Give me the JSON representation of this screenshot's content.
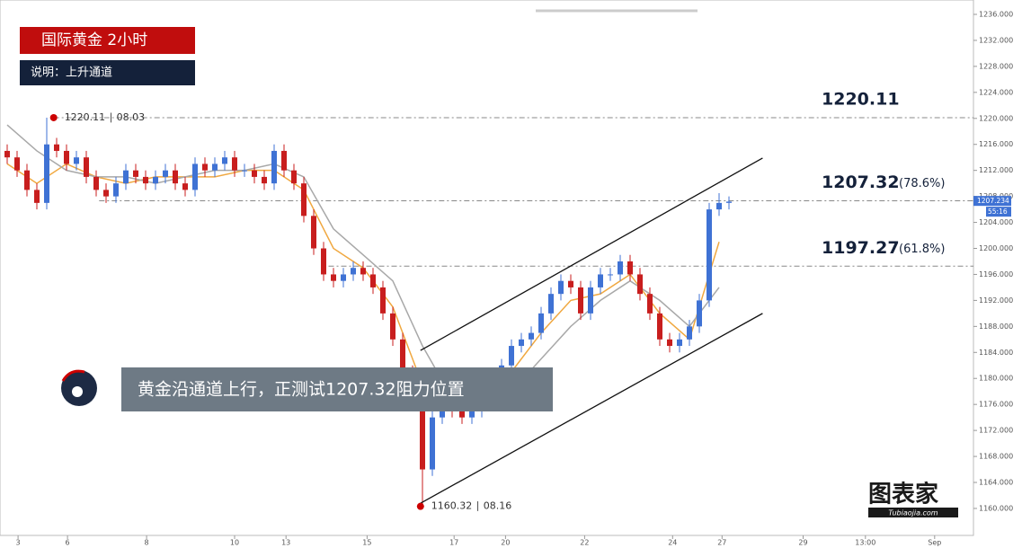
{
  "chart_data": {
    "type": "candlestick",
    "title": "国际黄金  2小时",
    "subtitle": "说明：上升通道",
    "caption": "黄金沿通道上行，正测试1207.32阻力位置",
    "logo": "图表家",
    "logo_sub": "Tubiaojia.com",
    "up_color": "#3f72d4",
    "down_color": "#c81e1e",
    "xlim": [
      -0.727,
      97.727
    ],
    "ylim": [
      1155.85,
      1238.21
    ],
    "xticks": [
      {
        "value": 1.1,
        "label": "3"
      },
      {
        "value": 6.1,
        "label": "6"
      },
      {
        "value": 14.1,
        "label": "8"
      },
      {
        "value": 23.0,
        "label": "10"
      },
      {
        "value": 28.2,
        "label": "13"
      },
      {
        "value": 36.4,
        "label": "15"
      },
      {
        "value": 45.2,
        "label": "17"
      },
      {
        "value": 50.4,
        "label": "20"
      },
      {
        "value": 58.4,
        "label": "22"
      },
      {
        "value": 67.3,
        "label": "24"
      },
      {
        "value": 72.3,
        "label": "27"
      },
      {
        "value": 80.5,
        "label": "29"
      },
      {
        "value": 86.8,
        "label": "13:00"
      },
      {
        "value": 93.8,
        "label": "Sep"
      }
    ],
    "yticks": [
      {
        "value": 1160,
        "label": "1160.000"
      },
      {
        "value": 1164,
        "label": "1164.000"
      },
      {
        "value": 1168,
        "label": "1168.000"
      },
      {
        "value": 1172,
        "label": "1172.000"
      },
      {
        "value": 1176,
        "label": "1176.000"
      },
      {
        "value": 1180,
        "label": "1180.000"
      },
      {
        "value": 1184,
        "label": "1184.000"
      },
      {
        "value": 1188,
        "label": "1188.000"
      },
      {
        "value": 1192,
        "label": "1192.000"
      },
      {
        "value": 1196,
        "label": "1196.000"
      },
      {
        "value": 1200,
        "label": "1200.000"
      },
      {
        "value": 1204,
        "label": "1204.000"
      },
      {
        "value": 1208,
        "label": "1208.000"
      },
      {
        "value": 1212,
        "label": "1212.000"
      },
      {
        "value": 1216,
        "label": "1216.000"
      },
      {
        "value": 1220,
        "label": "1220.000"
      },
      {
        "value": 1224,
        "label": "1224.000"
      },
      {
        "value": 1228,
        "label": "1228.000"
      },
      {
        "value": 1232,
        "label": "1232.000"
      },
      {
        "value": 1236,
        "label": "1236.000"
      }
    ],
    "x": [
      0,
      1,
      2,
      3,
      4,
      5,
      6,
      7,
      8,
      9,
      10,
      11,
      12,
      13,
      14,
      15,
      16,
      17,
      18,
      19,
      20,
      21,
      22,
      23,
      24,
      25,
      26,
      27,
      28,
      29,
      30,
      31,
      32,
      33,
      34,
      35,
      36,
      37,
      38,
      39,
      40,
      41,
      42,
      43,
      44,
      45,
      46,
      47,
      48,
      49,
      50,
      51,
      52,
      53,
      54,
      55,
      56,
      57,
      58,
      59,
      60,
      61,
      62,
      63,
      64,
      65,
      66,
      67,
      68,
      69,
      70,
      71,
      72,
      73
    ],
    "open": [
      1215,
      1214,
      1212,
      1209,
      1207,
      1216,
      1215,
      1213,
      1214,
      1211,
      1209,
      1208,
      1210,
      1212,
      1211,
      1210,
      1211,
      1212,
      1210,
      1209,
      1213,
      1212,
      1213,
      1214,
      1212,
      1212,
      1211,
      1210,
      1215,
      1212,
      1210,
      1205,
      1200,
      1196,
      1195,
      1196,
      1197,
      1196,
      1194,
      1190,
      1186,
      1181,
      1176,
      1166,
      1174,
      1177,
      1175,
      1174,
      1175,
      1177,
      1179,
      1182,
      1185,
      1186,
      1187,
      1190,
      1193,
      1195,
      1194,
      1190,
      1194,
      1196,
      1196,
      1198,
      1196,
      1193,
      1190,
      1186,
      1185,
      1186,
      1188,
      1192,
      1206,
      1207
    ],
    "high": [
      1216,
      1215,
      1213,
      1210,
      1220.11,
      1217,
      1216,
      1215,
      1215,
      1212,
      1210,
      1211,
      1213,
      1213,
      1212,
      1212,
      1213,
      1213,
      1211,
      1214,
      1214,
      1214,
      1215,
      1215,
      1213,
      1213,
      1212,
      1216,
      1216,
      1213,
      1211,
      1206,
      1201,
      1197,
      1197,
      1198,
      1198,
      1197,
      1195,
      1191,
      1187,
      1182,
      1177,
      1175,
      1178,
      1178,
      1176,
      1176,
      1178,
      1180,
      1183,
      1186,
      1187,
      1188,
      1191,
      1194,
      1196,
      1196,
      1195,
      1195,
      1197,
      1197,
      1199,
      1199,
      1197,
      1194,
      1191,
      1187,
      1187,
      1189,
      1193,
      1207,
      1208.5,
      1208
    ],
    "low": [
      1213,
      1211,
      1208,
      1206,
      1206,
      1214,
      1212,
      1212,
      1210,
      1208,
      1207,
      1207,
      1209,
      1210,
      1209,
      1209,
      1210,
      1209,
      1208,
      1208,
      1211,
      1211,
      1212,
      1211,
      1211,
      1210,
      1209,
      1209,
      1211,
      1209,
      1204,
      1199,
      1195,
      1194,
      1194,
      1195,
      1195,
      1193,
      1189,
      1185,
      1180,
      1175,
      1160.32,
      1165,
      1173,
      1174,
      1173,
      1173,
      1174,
      1176,
      1178,
      1181,
      1184,
      1185,
      1186,
      1189,
      1192,
      1193,
      1189,
      1189,
      1193,
      1195,
      1195,
      1195,
      1192,
      1189,
      1185,
      1184,
      1184,
      1185,
      1187,
      1191,
      1205,
      1206
    ],
    "close": [
      1214,
      1212,
      1209,
      1207,
      1216,
      1215,
      1213,
      1214,
      1211,
      1209,
      1208,
      1210,
      1212,
      1211,
      1210,
      1211,
      1212,
      1210,
      1209,
      1213,
      1212,
      1213,
      1214,
      1212,
      1212,
      1211,
      1210,
      1215,
      1212,
      1210,
      1205,
      1200,
      1196,
      1195,
      1196,
      1197,
      1196,
      1194,
      1190,
      1186,
      1181,
      1176,
      1166,
      1174,
      1177,
      1175,
      1174,
      1175,
      1177,
      1179,
      1182,
      1185,
      1186,
      1187,
      1190,
      1193,
      1195,
      1194,
      1190,
      1194,
      1196,
      1196,
      1198,
      1196,
      1193,
      1190,
      1186,
      1185,
      1186,
      1188,
      1192,
      1206,
      1207,
      1207.2
    ],
    "series": [
      {
        "color": "#f0a840",
        "x": [
          0,
          3,
          6,
          9,
          12,
          15,
          18,
          21,
          24,
          27,
          30,
          33,
          36,
          39,
          42,
          45,
          48,
          51,
          54,
          57,
          60,
          63,
          66,
          69,
          72
        ],
        "values": [
          1213,
          1210,
          1213,
          1211,
          1210,
          1211,
          1211,
          1211,
          1212,
          1212,
          1209,
          1200,
          1197,
          1191,
          1179,
          1175,
          1176,
          1181,
          1187,
          1192,
          1193,
          1196,
          1190,
          1186,
          1201
        ]
      },
      {
        "color": "#a8a8a8",
        "x": [
          0,
          3,
          6,
          9,
          12,
          15,
          18,
          21,
          24,
          27,
          30,
          33,
          36,
          39,
          42,
          45,
          48,
          51,
          54,
          57,
          60,
          63,
          66,
          69,
          72
        ],
        "values": [
          1219,
          1215,
          1212,
          1211,
          1211,
          1210,
          1211,
          1212,
          1212,
          1213,
          1211,
          1203,
          1199,
          1195,
          1185,
          1177,
          1175,
          1178,
          1183,
          1188,
          1192,
          1195,
          1192,
          1188,
          1194
        ]
      }
    ],
    "levels": [
      {
        "value": 1220.11,
        "start": 4.7
      },
      {
        "value": 1207.32,
        "start": 9.3,
        "note": "(78.6%)"
      },
      {
        "value": 1197.27,
        "start": 32.5,
        "note": "(61.8%)"
      }
    ],
    "channel": [
      {
        "x": [
          41.8,
          76.4
        ],
        "y": [
          1184.3,
          1213.9
        ]
      },
      {
        "x": [
          41.8,
          76.4
        ],
        "y": [
          1160.8,
          1190.0
        ]
      }
    ],
    "point_labels": [
      {
        "x": 4.7,
        "y": 1220.11,
        "text": "1220.11 ∣ 08.03"
      },
      {
        "x": 41.8,
        "y": 1160.32,
        "text": "1160.32 ∣ 08.16"
      }
    ],
    "last_price": 1207.234,
    "countdown": "55:16"
  }
}
